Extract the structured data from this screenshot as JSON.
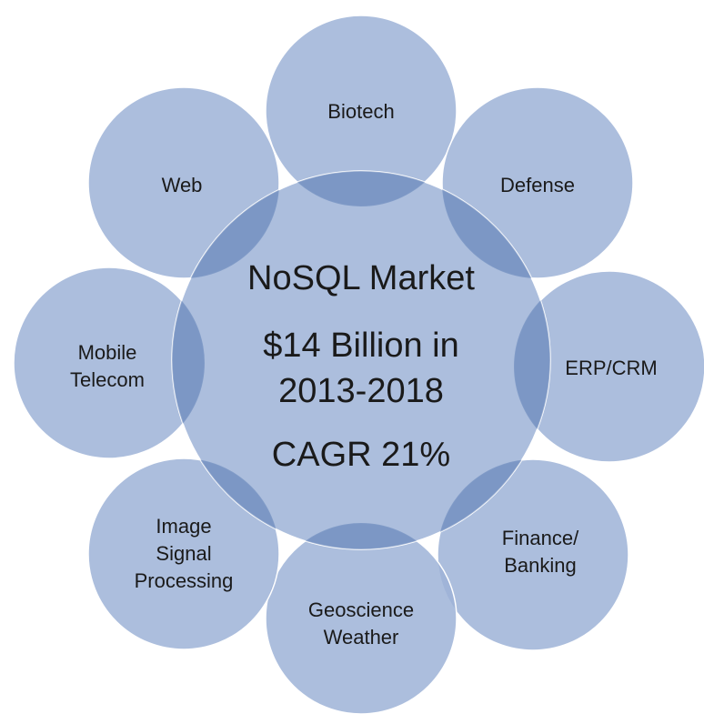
{
  "colors": {
    "circle_fill": "#9db3d7",
    "circle_opacity": 0.85,
    "overlap_shade": "#5f7fb6",
    "text": "#1a1a1a",
    "background": "#ffffff"
  },
  "center": {
    "lines": [
      "NoSQL Market",
      "$14 Billion in",
      "2013-2018",
      "CAGR 21%"
    ]
  },
  "segments": [
    {
      "id": "biotech",
      "lines": [
        "Biotech"
      ]
    },
    {
      "id": "defense",
      "lines": [
        "Defense"
      ]
    },
    {
      "id": "erp-crm",
      "lines": [
        "ERP/CRM"
      ]
    },
    {
      "id": "finance-banking",
      "lines": [
        "Finance/",
        "Banking"
      ]
    },
    {
      "id": "geoscience-weather",
      "lines": [
        "Geoscience",
        "Weather"
      ]
    },
    {
      "id": "image-signal-processing",
      "lines": [
        "Image",
        "Signal",
        "Processing"
      ]
    },
    {
      "id": "mobile-telecom",
      "lines": [
        "Mobile",
        "Telecom"
      ]
    },
    {
      "id": "web",
      "lines": [
        "Web"
      ]
    }
  ]
}
